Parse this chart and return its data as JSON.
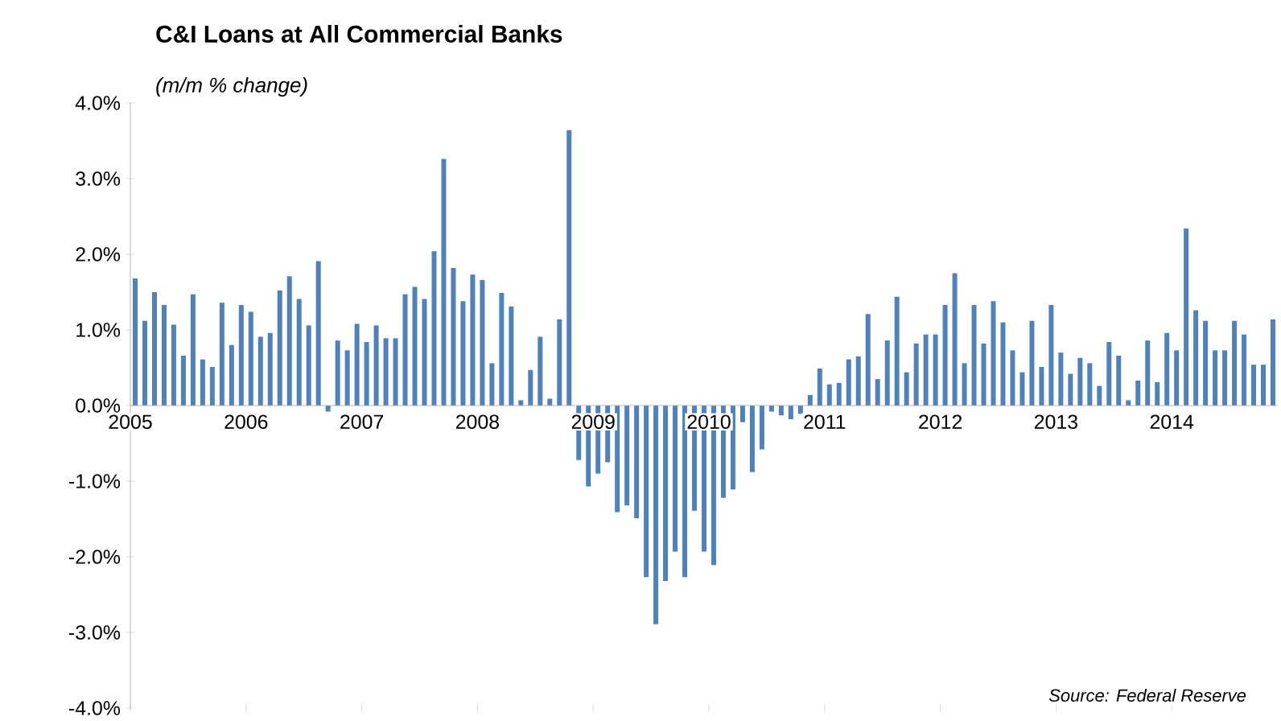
{
  "chart_data": {
    "type": "bar",
    "title": "C&I Loans at All Commercial Banks",
    "subtitle": "(m/m % change)",
    "annotations": [
      "Source: Federal Reserve"
    ],
    "color": "#4f81bd",
    "x": [
      "2005-01",
      "2005-02",
      "2005-03",
      "2005-04",
      "2005-05",
      "2005-06",
      "2005-07",
      "2005-08",
      "2005-09",
      "2005-10",
      "2005-11",
      "2005-12",
      "2006-01",
      "2006-02",
      "2006-03",
      "2006-04",
      "2006-05",
      "2006-06",
      "2006-07",
      "2006-08",
      "2006-09",
      "2006-10",
      "2006-11",
      "2006-12",
      "2007-01",
      "2007-02",
      "2007-03",
      "2007-04",
      "2007-05",
      "2007-06",
      "2007-07",
      "2007-08",
      "2007-09",
      "2007-10",
      "2007-11",
      "2007-12",
      "2008-01",
      "2008-02",
      "2008-03",
      "2008-04",
      "2008-05",
      "2008-06",
      "2008-07",
      "2008-08",
      "2008-09",
      "2008-10",
      "2008-11",
      "2008-12",
      "2009-01",
      "2009-02",
      "2009-03",
      "2009-04",
      "2009-05",
      "2009-06",
      "2009-07",
      "2009-08",
      "2009-09",
      "2009-10",
      "2009-11",
      "2009-12",
      "2010-01",
      "2010-02",
      "2010-03",
      "2010-04",
      "2010-05",
      "2010-06",
      "2010-07",
      "2010-08",
      "2010-09",
      "2010-10",
      "2010-11",
      "2010-12",
      "2011-01",
      "2011-02",
      "2011-03",
      "2011-04",
      "2011-05",
      "2011-06",
      "2011-07",
      "2011-08",
      "2011-09",
      "2011-10",
      "2011-11",
      "2011-12",
      "2012-01",
      "2012-02",
      "2012-03",
      "2012-04",
      "2012-05",
      "2012-06",
      "2012-07",
      "2012-08",
      "2012-09",
      "2012-10",
      "2012-11",
      "2012-12",
      "2013-01",
      "2013-02",
      "2013-03",
      "2013-04",
      "2013-05",
      "2013-06",
      "2013-07",
      "2013-08",
      "2013-09",
      "2013-10",
      "2013-11",
      "2013-12",
      "2014-01",
      "2014-02",
      "2014-03",
      "2014-04",
      "2014-05",
      "2014-06",
      "2014-07",
      "2014-08",
      "2014-09",
      "2014-10",
      "2014-11"
    ],
    "values": [
      1.68,
      1.12,
      1.5,
      1.33,
      1.07,
      0.66,
      1.47,
      0.61,
      0.51,
      1.36,
      0.8,
      1.33,
      1.24,
      0.91,
      0.96,
      1.52,
      1.71,
      1.41,
      1.06,
      1.91,
      -0.08,
      0.86,
      0.73,
      1.08,
      0.84,
      1.06,
      0.89,
      0.89,
      1.47,
      1.57,
      1.41,
      2.04,
      3.26,
      1.82,
      1.38,
      1.73,
      1.66,
      0.56,
      1.49,
      1.31,
      0.07,
      0.47,
      0.91,
      0.09,
      1.14,
      3.64,
      -0.72,
      -1.07,
      -0.9,
      -0.75,
      -1.41,
      -1.32,
      -1.49,
      -2.27,
      -2.89,
      -2.32,
      -1.93,
      -2.27,
      -1.39,
      -1.93,
      -2.11,
      -1.22,
      -1.11,
      -0.22,
      -0.88,
      -0.58,
      -0.08,
      -0.13,
      -0.18,
      -0.11,
      0.14,
      0.49,
      0.28,
      0.3,
      0.61,
      0.65,
      1.21,
      0.35,
      0.86,
      1.44,
      0.44,
      0.82,
      0.94,
      0.94,
      1.33,
      1.75,
      0.56,
      1.33,
      0.82,
      1.38,
      1.1,
      0.73,
      0.44,
      1.12,
      0.51,
      1.33,
      0.7,
      0.42,
      0.63,
      0.56,
      0.26,
      0.84,
      0.66,
      0.07,
      0.33,
      0.86,
      0.31,
      0.96,
      0.73,
      2.34,
      1.26,
      1.12,
      0.73,
      0.73,
      1.12,
      0.94,
      0.54,
      0.54,
      1.14
    ],
    "xlim": [
      "2005-01",
      "2014-12"
    ],
    "xticks": [
      "2005",
      "2006",
      "2007",
      "2008",
      "2009",
      "2010",
      "2011",
      "2012",
      "2013",
      "2014"
    ],
    "ylim": [
      -4,
      4
    ],
    "yticks": [
      {
        "value": 4,
        "label": "4.0%"
      },
      {
        "value": 3,
        "label": "3.0%"
      },
      {
        "value": 2,
        "label": "2.0%"
      },
      {
        "value": 1,
        "label": "1.0%"
      },
      {
        "value": 0,
        "label": "0.0%"
      },
      {
        "value": -1,
        "label": "-1.0%"
      },
      {
        "value": -2,
        "label": "-2.0%"
      },
      {
        "value": -3,
        "label": "-3.0%"
      },
      {
        "value": -4,
        "label": "-4.0%"
      }
    ]
  }
}
